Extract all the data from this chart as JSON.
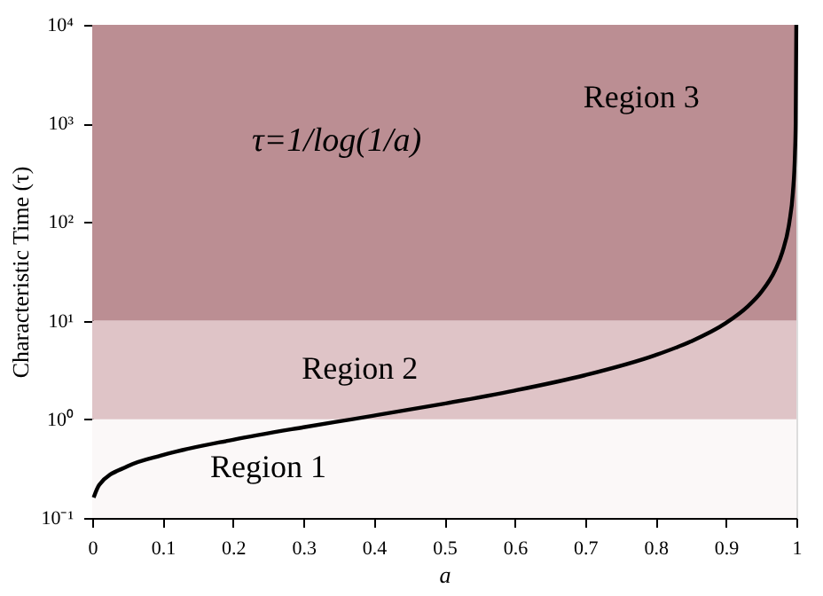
{
  "chart_data": {
    "type": "line",
    "xlabel": "a",
    "ylabel": "Characteristic Time (τ)",
    "x": [
      0.002,
      0.01,
      0.05,
      0.1,
      0.2,
      0.3,
      0.368,
      0.4,
      0.5,
      0.6,
      0.7,
      0.8,
      0.85,
      0.9,
      0.93,
      0.95,
      0.97,
      0.98,
      0.99,
      0.995,
      0.998,
      0.999,
      0.9999
    ],
    "series": [
      {
        "color": "#000000",
        "values": [
          0.161,
          0.217,
          0.334,
          0.434,
          0.621,
          0.831,
          1.0,
          1.091,
          1.443,
          1.958,
          2.804,
          4.481,
          6.153,
          9.49,
          13.78,
          19.5,
          32.8,
          49.5,
          99.5,
          199.5,
          499.5,
          999.5,
          9999.5
        ]
      }
    ],
    "log": "y",
    "xlim": [
      0,
      1
    ],
    "ylim": [
      0.1,
      10000
    ],
    "xticks": [
      0,
      0.1,
      0.2,
      0.3,
      0.4,
      0.5,
      0.6,
      0.7,
      0.8,
      0.9,
      1
    ],
    "yticks": [
      {
        "value": 0.1,
        "label": "10⁻¹"
      },
      {
        "value": 1,
        "label": "10⁰"
      },
      {
        "value": 10,
        "label": "10¹"
      },
      {
        "value": 100,
        "label": "10²"
      },
      {
        "value": 1000,
        "label": "10³"
      },
      {
        "value": 10000,
        "label": "10⁴"
      }
    ],
    "bands": [
      {
        "axis": "y",
        "from": 0.1,
        "to": 1,
        "label": "Region 1",
        "color": "#fbf8f8"
      },
      {
        "axis": "y",
        "from": 1,
        "to": 10,
        "label": "Region 2",
        "color": "#dfc4c7"
      },
      {
        "axis": "y",
        "from": 10,
        "to": 10000,
        "label": "Region 3",
        "color": "#bb8e93"
      }
    ],
    "annotations": [
      "τ=1/log(1/a)"
    ],
    "line_style": "solid",
    "marker": "none"
  }
}
